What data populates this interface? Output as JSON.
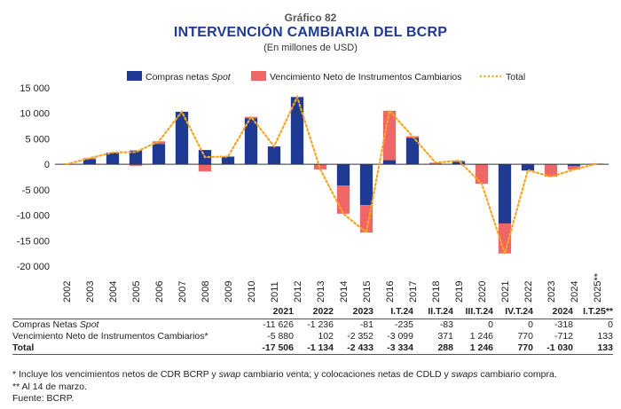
{
  "header": {
    "supertitle": "Gráfico 82",
    "title": "INTERVENCIÓN CAMBIARIA DEL BCRP",
    "subtitle": "(En millones de USD)"
  },
  "colors": {
    "compras": "#1f3a93",
    "vencimiento": "#ef6667",
    "total": "#f5a623",
    "axis": "#333333"
  },
  "legend": {
    "compras_prefix": "Compras netas ",
    "compras_italic": "Spot",
    "vencimiento": "Vencimiento Neto de Instrumentos Cambiarios",
    "total": "Total"
  },
  "chart_data": {
    "type": "bar",
    "stacked": true,
    "categories": [
      "2002",
      "2003",
      "2004",
      "2005",
      "2006",
      "2007",
      "2008",
      "2009",
      "2010",
      "2011",
      "2012",
      "2013",
      "2014",
      "2015",
      "2016",
      "2017",
      "2018",
      "2019",
      "2020",
      "2021",
      "2022",
      "2023",
      "2024",
      "2025**"
    ],
    "series": [
      {
        "name": "Compras netas Spot",
        "kind": "bar",
        "values": [
          0,
          1000,
          2300,
          2700,
          4000,
          10300,
          2800,
          1500,
          9000,
          3500,
          13200,
          0,
          -4200,
          -8000,
          800,
          5200,
          0,
          500,
          0,
          -11626,
          -1236,
          -81,
          -318,
          0
        ]
      },
      {
        "name": "Vencimiento Neto de Instrumentos Cambiarios",
        "kind": "bar",
        "values": [
          0,
          200,
          0,
          -300,
          500,
          0,
          -1400,
          0,
          300,
          0,
          0,
          -1000,
          -5500,
          -5400,
          9700,
          300,
          300,
          200,
          -3800,
          -5880,
          102,
          -2352,
          -712,
          133
        ]
      },
      {
        "name": "Total",
        "kind": "line",
        "values": [
          0,
          1200,
          2300,
          2400,
          4500,
          10300,
          1400,
          1500,
          9300,
          3500,
          13200,
          -1000,
          -9700,
          -13400,
          10500,
          5500,
          300,
          700,
          -3800,
          -17506,
          -1134,
          -2433,
          -1030,
          133
        ]
      }
    ],
    "ylim": [
      -20000,
      15000
    ],
    "yticks": [
      -20000,
      -15000,
      -10000,
      -5000,
      0,
      5000,
      10000,
      15000
    ],
    "ytick_labels": [
      "-20 000",
      "-15 000",
      "-10 000",
      "-5 000",
      "0",
      "5 000",
      "10 000",
      "15 000"
    ],
    "legend_position": "top"
  },
  "table": {
    "columns": [
      "2021",
      "2022",
      "2023",
      "I.T.24",
      "II.T.24",
      "III.T.24",
      "IV.T.24",
      "2024",
      "I.T.25**"
    ],
    "rows": [
      {
        "label_prefix": "Compras Netas ",
        "label_italic": "Spot",
        "values": [
          "-11 626",
          "-1 236",
          "-81",
          "-235",
          "-83",
          "0",
          "0",
          "-318",
          "0"
        ]
      },
      {
        "label_prefix": "Vencimiento Neto de Instrumentos Cambiarios*",
        "label_italic": "",
        "values": [
          "-5 880",
          "102",
          "-2 352",
          "-3 099",
          "371",
          "1 246",
          "770",
          "-712",
          "133"
        ]
      },
      {
        "label_prefix": "Total",
        "label_italic": "",
        "values": [
          "-17 506",
          "-1 134",
          "-2 433",
          "-3 334",
          "288",
          "1 246",
          "770",
          "-1 030",
          "133"
        ]
      }
    ]
  },
  "notes": {
    "note1_a": "* Incluye los vencimientos netos de CDR BCRP y ",
    "note1_b": "swap",
    "note1_c": " cambiario venta; y colocaciones netas de CDLD y ",
    "note1_d": "swaps",
    "note1_e": " cambiario compra.",
    "note2": "** Al 14 de marzo.",
    "note3": "Fuente: BCRP."
  }
}
